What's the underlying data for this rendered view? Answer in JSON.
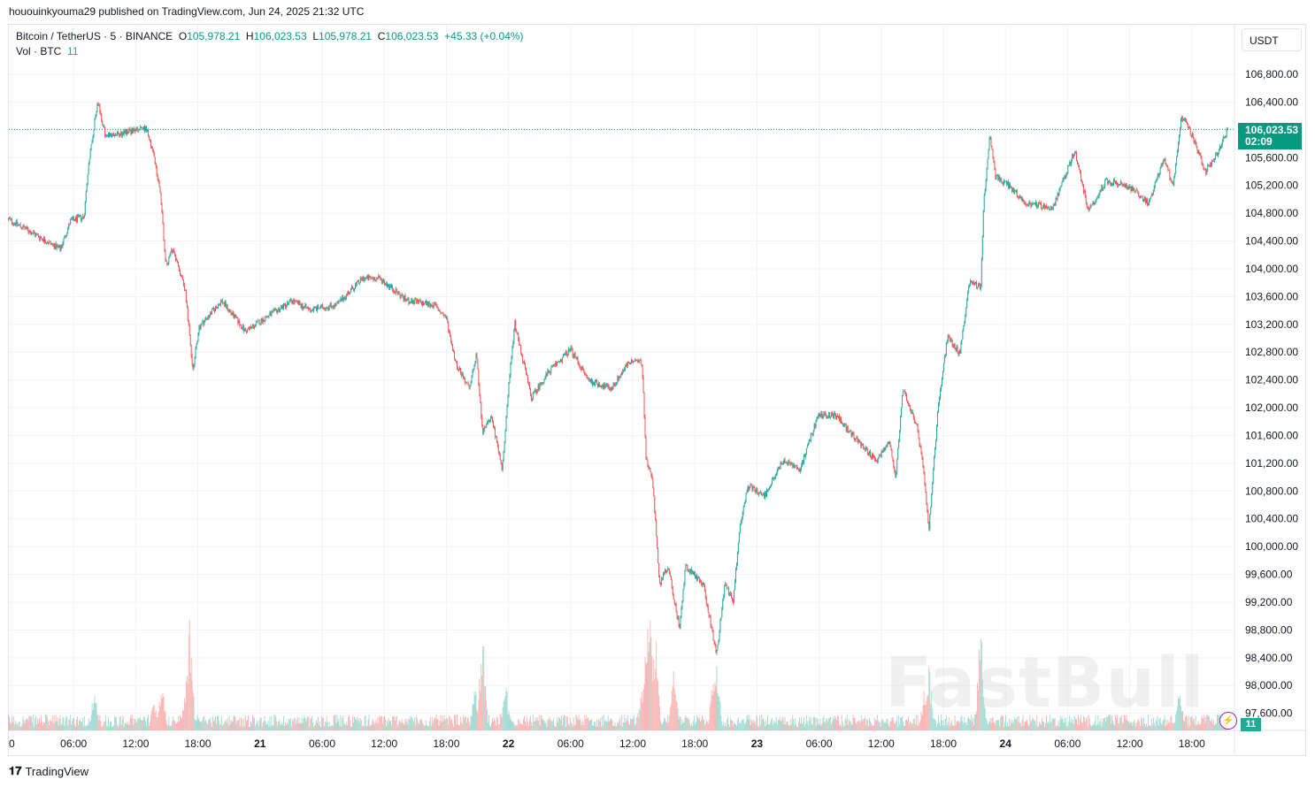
{
  "header": {
    "published": "hououinkyouma29 published on TradingView.com, Jun 24, 2025 21:32 UTC"
  },
  "legend": {
    "symbol": "Bitcoin / TetherUS · 5 · BINANCE",
    "o_label": "O",
    "o_value": "105,978.21",
    "h_label": "H",
    "h_value": "106,023.53",
    "l_label": "L",
    "l_value": "105,978.21",
    "c_label": "C",
    "c_value": "106,023.53",
    "change": "+45.33 (+0.04%)",
    "vol_label": "Vol · BTC",
    "vol_value": "11"
  },
  "currency_button": "USDT",
  "last_price": {
    "price": "106,023.53",
    "countdown": "02:09"
  },
  "volume_badge": "11",
  "watermark": "FastBull",
  "footer_logo": "TradingView",
  "colors": {
    "up": "#26a69a",
    "down": "#ef5350",
    "accent": "#089981",
    "volume_up": "#9fd9d1",
    "volume_down": "#f7b3b1"
  },
  "chart_data": {
    "type": "candlestick",
    "title": "Bitcoin / TetherUS · 5 · BINANCE",
    "interval_minutes": 5,
    "x_unit": "hours since Jun 20 00:00 UTC",
    "xlim": [
      -0.3,
      122
    ],
    "ylim": [
      97400,
      107200
    ],
    "y_ticks": [
      "106,800.00",
      "106,400.00",
      "106,000.00",
      "105,600.00",
      "105,200.00",
      "104,800.00",
      "104,400.00",
      "104,000.00",
      "103,600.00",
      "103,200.00",
      "102,800.00",
      "102,400.00",
      "102,000.00",
      "101,600.00",
      "101,200.00",
      "100,800.00",
      "100,400.00",
      "100,000.00",
      "99,600.00",
      "99,200.00",
      "98,800.00",
      "98,400.00",
      "98,000.00",
      "97,600.00"
    ],
    "x_ticks": [
      {
        "label": "0",
        "bold": false
      },
      {
        "label": "06:00",
        "bold": false
      },
      {
        "label": "12:00",
        "bold": false
      },
      {
        "label": "18:00",
        "bold": false
      },
      {
        "label": "21",
        "bold": true
      },
      {
        "label": "06:00",
        "bold": false
      },
      {
        "label": "12:00",
        "bold": false
      },
      {
        "label": "18:00",
        "bold": false
      },
      {
        "label": "22",
        "bold": true
      },
      {
        "label": "06:00",
        "bold": false
      },
      {
        "label": "12:00",
        "bold": false
      },
      {
        "label": "18:00",
        "bold": false
      },
      {
        "label": "23",
        "bold": true
      },
      {
        "label": "06:00",
        "bold": false
      },
      {
        "label": "12:00",
        "bold": false
      },
      {
        "label": "18:00",
        "bold": false
      },
      {
        "label": "24",
        "bold": true
      },
      {
        "label": "06:00",
        "bold": false
      },
      {
        "label": "12:00",
        "bold": false
      },
      {
        "label": "18:00",
        "bold": false
      }
    ],
    "price_path": [
      [
        -0.3,
        104712
      ],
      [
        2.3,
        104496
      ],
      [
        4.7,
        104280
      ],
      [
        5.7,
        104687
      ],
      [
        7,
        104750
      ],
      [
        7.4,
        105450
      ],
      [
        8.3,
        106405
      ],
      [
        9.1,
        105896
      ],
      [
        10.9,
        105960
      ],
      [
        13,
        106023
      ],
      [
        13.8,
        105578
      ],
      [
        14.4,
        105070
      ],
      [
        14.9,
        104050
      ],
      [
        15.6,
        104305
      ],
      [
        16.8,
        103670
      ],
      [
        17.5,
        102520
      ],
      [
        18.1,
        103160
      ],
      [
        20.3,
        103540
      ],
      [
        22.6,
        103100
      ],
      [
        24.5,
        103290
      ],
      [
        27.1,
        103540
      ],
      [
        28.8,
        103410
      ],
      [
        31.4,
        103480
      ],
      [
        33.9,
        103860
      ],
      [
        35.6,
        103860
      ],
      [
        38.2,
        103540
      ],
      [
        40.8,
        103480
      ],
      [
        42,
        103290
      ],
      [
        42.9,
        102650
      ],
      [
        44.2,
        102270
      ],
      [
        44.9,
        102780
      ],
      [
        45.5,
        101630
      ],
      [
        46.3,
        101890
      ],
      [
        47.4,
        101120
      ],
      [
        48,
        102270
      ],
      [
        48.6,
        103220
      ],
      [
        50.2,
        102140
      ],
      [
        51.9,
        102520
      ],
      [
        54,
        102840
      ],
      [
        55.7,
        102400
      ],
      [
        57.9,
        102270
      ],
      [
        59.6,
        102650
      ],
      [
        60.9,
        102650
      ],
      [
        61.3,
        101250
      ],
      [
        61.9,
        100990
      ],
      [
        62.6,
        99460
      ],
      [
        63.4,
        99720
      ],
      [
        64.5,
        98830
      ],
      [
        65.1,
        99720
      ],
      [
        66.8,
        99460
      ],
      [
        68.1,
        98450
      ],
      [
        68.9,
        99460
      ],
      [
        69.7,
        99210
      ],
      [
        70.3,
        100230
      ],
      [
        71.1,
        100870
      ],
      [
        72.8,
        100740
      ],
      [
        74.5,
        101250
      ],
      [
        76.2,
        101120
      ],
      [
        77.9,
        101890
      ],
      [
        79.6,
        101890
      ],
      [
        81.4,
        101570
      ],
      [
        83.5,
        101250
      ],
      [
        84.8,
        101510
      ],
      [
        85.4,
        100990
      ],
      [
        86.1,
        102270
      ],
      [
        87.4,
        101760
      ],
      [
        88,
        101250
      ],
      [
        88.6,
        100230
      ],
      [
        89.5,
        102010
      ],
      [
        90.4,
        103030
      ],
      [
        91.6,
        102780
      ],
      [
        92.5,
        103800
      ],
      [
        93.6,
        103740
      ],
      [
        93.9,
        104940
      ],
      [
        94.5,
        105960
      ],
      [
        95,
        105320
      ],
      [
        96.3,
        105200
      ],
      [
        98,
        104940
      ],
      [
        100.6,
        104880
      ],
      [
        102.7,
        105700
      ],
      [
        104,
        104820
      ],
      [
        105.7,
        105260
      ],
      [
        107.8,
        105200
      ],
      [
        109.8,
        104940
      ],
      [
        111.3,
        105580
      ],
      [
        112.2,
        105200
      ],
      [
        113,
        106210
      ],
      [
        114.3,
        105830
      ],
      [
        115.3,
        105390
      ],
      [
        116.4,
        105640
      ],
      [
        117.5,
        106023.53
      ]
    ],
    "volume_spikes_btc": [
      [
        8,
        250
      ],
      [
        13.8,
        200
      ],
      [
        14.5,
        330
      ],
      [
        16.9,
        330
      ],
      [
        17.2,
        700
      ],
      [
        44.8,
        280
      ],
      [
        45.5,
        600
      ],
      [
        47.7,
        310
      ],
      [
        60.8,
        260
      ],
      [
        61.3,
        650
      ],
      [
        61.6,
        800
      ],
      [
        62.2,
        600
      ],
      [
        64,
        380
      ],
      [
        67.8,
        330
      ],
      [
        68.1,
        450
      ],
      [
        88.2,
        280
      ],
      [
        88.6,
        420
      ],
      [
        93.6,
        640
      ],
      [
        112.8,
        250
      ]
    ],
    "last_volume": 11
  }
}
